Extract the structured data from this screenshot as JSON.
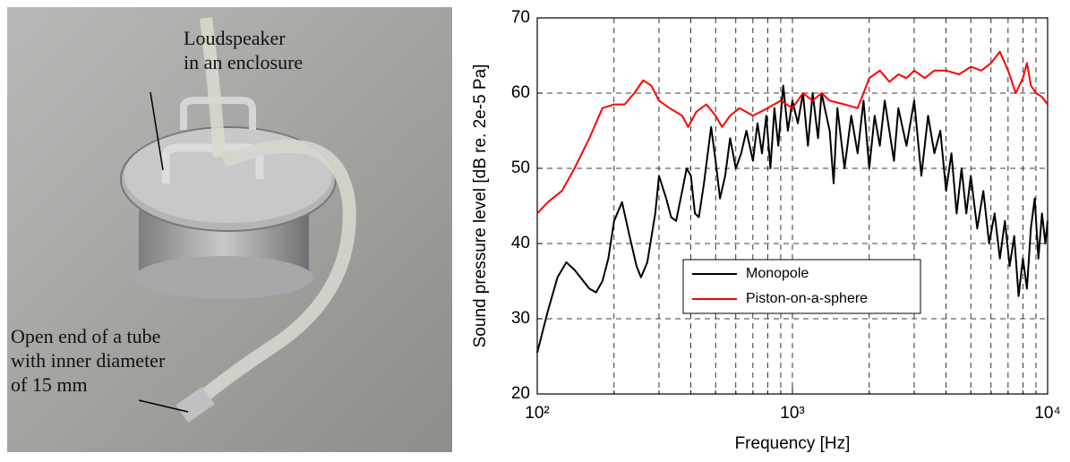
{
  "photo": {
    "labels": [
      {
        "lines": [
          "Loudspeaker",
          "in an enclosure"
        ]
      },
      {
        "lines": [
          "Open end of a tube",
          "with inner diameter",
          "of 15 mm"
        ]
      }
    ]
  },
  "chart_data": {
    "type": "line",
    "xlabel": "Frequency [Hz]",
    "ylabel": "Sound pressure level [dB re. 2e-5 Pa]",
    "xscale": "log",
    "xlim": [
      100,
      10000
    ],
    "ylim": [
      20,
      70
    ],
    "xticks": [
      {
        "value": 100,
        "label": "10²"
      },
      {
        "value": 1000,
        "label": "10³"
      },
      {
        "value": 10000,
        "label": "10⁴"
      }
    ],
    "xminor": [
      200,
      300,
      400,
      500,
      600,
      700,
      800,
      900,
      2000,
      3000,
      4000,
      5000,
      6000,
      7000,
      8000,
      9000
    ],
    "yticks": [
      20,
      30,
      40,
      50,
      60,
      70
    ],
    "grid": true,
    "legend": "lower-center",
    "series": [
      {
        "name": "Monopole",
        "color": "#000000",
        "x": [
          100,
          110,
          120,
          130,
          140,
          160,
          170,
          180,
          190,
          200,
          215,
          230,
          245,
          255,
          270,
          290,
          300,
          320,
          335,
          350,
          370,
          385,
          400,
          415,
          430,
          450,
          480,
          500,
          520,
          545,
          570,
          600,
          630,
          660,
          700,
          730,
          760,
          790,
          820,
          850,
          880,
          920,
          960,
          1000,
          1050,
          1100,
          1150,
          1200,
          1260,
          1300,
          1400,
          1450,
          1500,
          1600,
          1700,
          1800,
          1900,
          2000,
          2100,
          2200,
          2300,
          2500,
          2600,
          2800,
          3000,
          3200,
          3400,
          3600,
          3800,
          4000,
          4200,
          4400,
          4600,
          4800,
          5000,
          5300,
          5600,
          5900,
          6200,
          6500,
          6800,
          7100,
          7400,
          7700,
          8000,
          8300,
          8600,
          8900,
          9200,
          9500,
          9800,
          10000
        ],
        "values": [
          25.5,
          31,
          35.5,
          37.5,
          36.5,
          34,
          33.5,
          35,
          38,
          43,
          45.5,
          41,
          37,
          35.5,
          37.5,
          44,
          49,
          46,
          43.5,
          43,
          47,
          50,
          49,
          44,
          43.5,
          48,
          55.5,
          51,
          46,
          49,
          54,
          50,
          52,
          55,
          51,
          56,
          52,
          57,
          50,
          58,
          53,
          61,
          55,
          59,
          56,
          60,
          53,
          60,
          54,
          60,
          55,
          48,
          58,
          50,
          57,
          52,
          59,
          50,
          57,
          53,
          59,
          51,
          58,
          53,
          59,
          49,
          57,
          52,
          55,
          47,
          52,
          44,
          50,
          44,
          49,
          42,
          47,
          40,
          44,
          38,
          43,
          37,
          41,
          33,
          38,
          34,
          42,
          46,
          38,
          44,
          40,
          43
        ]
      },
      {
        "name": "Piston-on-a-sphere",
        "color": "#ff0000",
        "x": [
          100,
          110,
          125,
          140,
          160,
          180,
          200,
          220,
          240,
          260,
          280,
          300,
          330,
          370,
          390,
          420,
          460,
          500,
          530,
          570,
          620,
          700,
          800,
          900,
          1000,
          1100,
          1200,
          1300,
          1400,
          1600,
          1800,
          1900,
          2000,
          2200,
          2400,
          2600,
          2800,
          3000,
          3300,
          3600,
          4000,
          4500,
          5000,
          5500,
          6000,
          6500,
          7000,
          7500,
          8000,
          8300,
          8600,
          9000,
          9500,
          10000
        ],
        "values": [
          44,
          45.5,
          47,
          50,
          54,
          58,
          58.5,
          58.5,
          60,
          61.7,
          61,
          59,
          58,
          57,
          55.5,
          57.5,
          58.5,
          57,
          55.5,
          57,
          58,
          57,
          58,
          59,
          58,
          60,
          59,
          60,
          59,
          58.5,
          58,
          60,
          62,
          63,
          61.5,
          62.5,
          62,
          63,
          62,
          63,
          63,
          62.5,
          63.5,
          63,
          64,
          65.5,
          63,
          60,
          62,
          64,
          61,
          60,
          59.5,
          58.5
        ]
      }
    ]
  }
}
